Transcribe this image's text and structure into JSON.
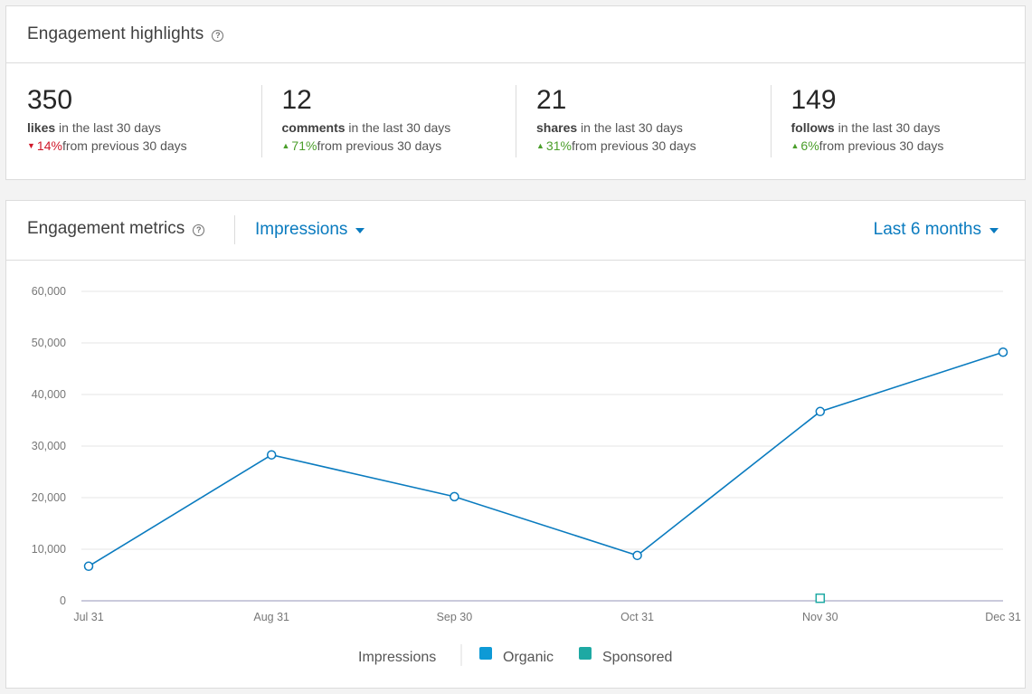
{
  "highlights": {
    "title": "Engagement highlights",
    "help_icon": "help-icon",
    "stats": [
      {
        "value": "350",
        "label": "likes",
        "suffix": " in the last 30 days",
        "change": "14%",
        "direction": "down",
        "change_suffix": " from previous 30 days"
      },
      {
        "value": "12",
        "label": "comments",
        "suffix": " in the last 30 days",
        "change": "71%",
        "direction": "up",
        "change_suffix": " from previous 30 days"
      },
      {
        "value": "21",
        "label": "shares",
        "suffix": " in the last 30 days",
        "change": "31%",
        "direction": "up",
        "change_suffix": " from previous 30 days"
      },
      {
        "value": "149",
        "label": "follows",
        "suffix": " in the last 30 days",
        "change": "6%",
        "direction": "up",
        "change_suffix": " from previous 30 days"
      }
    ]
  },
  "metrics": {
    "title": "Engagement metrics",
    "metric_select": "Impressions",
    "range_select": "Last 6 months"
  },
  "colors": {
    "accent": "#0a7bbf",
    "organic": "#0e9ad6",
    "sponsored": "#1ea9a3",
    "down": "#d0182a",
    "up": "#4a9e2a"
  },
  "chart_data": {
    "type": "line",
    "x": [
      "Jul 31",
      "Aug 31",
      "Sep 30",
      "Oct 31",
      "Nov 30",
      "Dec 31"
    ],
    "yticks": [
      "0",
      "10,000",
      "20,000",
      "30,000",
      "40,000",
      "50,000",
      "60,000"
    ],
    "ylim": [
      0,
      60000
    ],
    "grid": true,
    "series": [
      {
        "name": "Organic",
        "values": [
          6700,
          28300,
          20200,
          8800,
          36700,
          48200
        ]
      },
      {
        "name": "Sponsored",
        "values": [
          null,
          null,
          null,
          null,
          500,
          null
        ]
      }
    ],
    "legend": {
      "title": "Impressions",
      "placement": "bottom-center"
    }
  }
}
